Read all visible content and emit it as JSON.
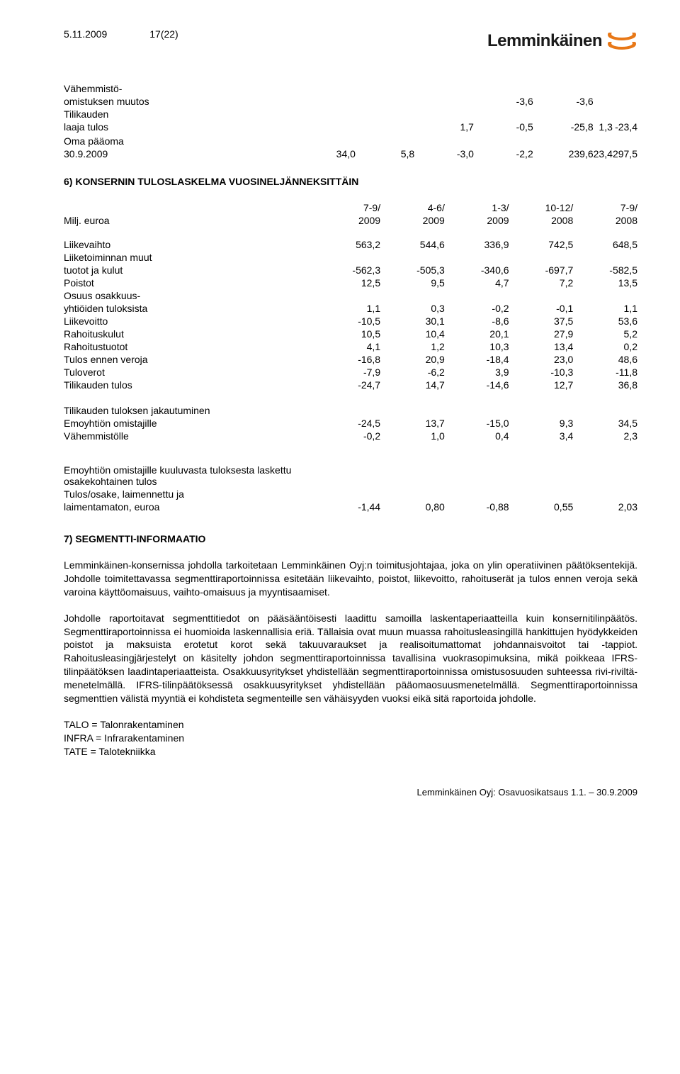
{
  "header": {
    "date": "5.11.2009",
    "page": "17(22)",
    "company": "Lemminkäinen"
  },
  "topTable": {
    "rows": [
      {
        "label": "Vähemmistö-"
      },
      {
        "label": "omistuksen muutos",
        "cols": [
          "",
          "",
          "-3,6",
          "-3,6",
          ""
        ]
      },
      {
        "label": "Tilikauden"
      },
      {
        "label": "laaja tulos",
        "cols": [
          "1,7",
          "-0,5",
          "-25,8",
          "1,3",
          "-23,4"
        ]
      },
      {
        "label": ""
      },
      {
        "label": "Oma pääoma"
      },
      {
        "label": "30.9.2009",
        "cols": [
          "34,0",
          "5,8",
          "-3,0",
          "-2,2",
          "239,6",
          "23,4",
          "297,5"
        ]
      }
    ]
  },
  "section6": {
    "title": "6) KONSERNIN TULOSLASKELMA VUOSINELJÄNNEKSITTÄIN",
    "head": {
      "label": "Milj. euroa",
      "top": [
        "7-9/",
        "4-6/",
        "1-3/",
        "10-12/",
        "7-9/"
      ],
      "bot": [
        "2009",
        "2009",
        "2009",
        "2008",
        "2008"
      ]
    },
    "rows": [
      {
        "label": "Liikevaihto",
        "cols": [
          "563,2",
          "544,6",
          "336,9",
          "742,5",
          "648,5"
        ]
      },
      {
        "label": "Liiketoiminnan muut"
      },
      {
        "label": "tuotot ja kulut",
        "cols": [
          "-562,3",
          "-505,3",
          "-340,6",
          "-697,7",
          "-582,5"
        ]
      },
      {
        "label": "Poistot",
        "cols": [
          "12,5",
          "9,5",
          "4,7",
          "7,2",
          "13,5"
        ]
      },
      {
        "label": "Osuus osakkuus-"
      },
      {
        "label": "yhtiöiden tuloksista",
        "cols": [
          "1,1",
          "0,3",
          "-0,2",
          "-0,1",
          "1,1"
        ]
      },
      {
        "label": "Liikevoitto",
        "cols": [
          "-10,5",
          "30,1",
          "-8,6",
          "37,5",
          "53,6"
        ]
      },
      {
        "label": "Rahoituskulut",
        "cols": [
          "10,5",
          "10,4",
          "20,1",
          "27,9",
          "5,2"
        ]
      },
      {
        "label": "Rahoitustuotot",
        "cols": [
          "4,1",
          "1,2",
          "10,3",
          "13,4",
          "0,2"
        ]
      },
      {
        "label": "Tulos ennen veroja",
        "cols": [
          "-16,8",
          "20,9",
          "-18,4",
          "23,0",
          "48,6"
        ]
      },
      {
        "label": "Tuloverot",
        "cols": [
          "-7,9",
          "-6,2",
          "3,9",
          "-10,3",
          "-11,8"
        ]
      },
      {
        "label": "Tilikauden tulos",
        "cols": [
          "-24,7",
          "14,7",
          "-14,6",
          "12,7",
          "36,8"
        ]
      }
    ],
    "jakautuminen": {
      "title": "Tilikauden tuloksen jakautuminen",
      "rows": [
        {
          "label": "Emoyhtiön omistajille",
          "cols": [
            "-24,5",
            "13,7",
            "-15,0",
            "9,3",
            "34,5"
          ]
        },
        {
          "label": "Vähemmistölle",
          "cols": [
            "-0,2",
            "1,0",
            "0,4",
            "3,4",
            "2,3"
          ]
        }
      ]
    },
    "eps": {
      "line1": "Emoyhtiön omistajille kuuluvasta tuloksesta laskettu osakekohtainen tulos",
      "line2": "Tulos/osake, laimennettu ja",
      "row": {
        "label": "laimentamaton, euroa",
        "cols": [
          "-1,44",
          "0,80",
          "-0,88",
          "0,55",
          "2,03"
        ]
      }
    }
  },
  "section7": {
    "title": "7) SEGMENTTI-INFORMAATIO",
    "paras": [
      "Lemminkäinen-konsernissa johdolla tarkoitetaan Lemminkäinen Oyj:n toimitusjohtajaa, joka on ylin operatiivinen päätöksentekijä. Johdolle toimitettavassa segmenttiraportoinnissa esitetään liikevaihto, poistot, liikevoitto, rahoituserät ja tulos ennen veroja sekä varoina käyttöomaisuus, vaihto-omaisuus ja myyntisaamiset.",
      "Johdolle raportoitavat segmenttitiedot on pääsääntöisesti laadittu samoilla laskentaperiaatteilla kuin konsernitilinpäätös. Segmenttiraportoinnissa ei huomioida laskennallisia eriä. Tällaisia ovat muun muassa rahoitusleasingillä hankittujen hyödykkeiden poistot ja maksuista erotetut korot sekä takuuvaraukset ja realisoitumattomat johdannaisvoitot tai -tappiot. Rahoitusleasingjärjestelyt on käsitelty johdon segmenttiraportoinnissa tavallisina vuokrasopimuksina, mikä poikkeaa IFRS-tilinpäätöksen laadintaperiaatteista. Osakkuusyritykset yhdistellään segmenttiraportoinnissa omistusosuuden suhteessa rivi-riviltä-menetelmällä. IFRS-tilinpäätöksessä osakkuusyritykset yhdistellään pääomaosuusmenetelmällä. Segmenttiraportoinnissa segmenttien välistä myyntiä ei kohdisteta segmenteille sen vähäisyyden vuoksi eikä sitä raportoida johdolle."
    ],
    "abbr": [
      "TALO = Talonrakentaminen",
      "INFRA = Infrarakentaminen",
      "TATE = Talotekniikka"
    ]
  },
  "footer": "Lemminkäinen Oyj: Osavuosikatsaus 1.1. – 30.9.2009"
}
